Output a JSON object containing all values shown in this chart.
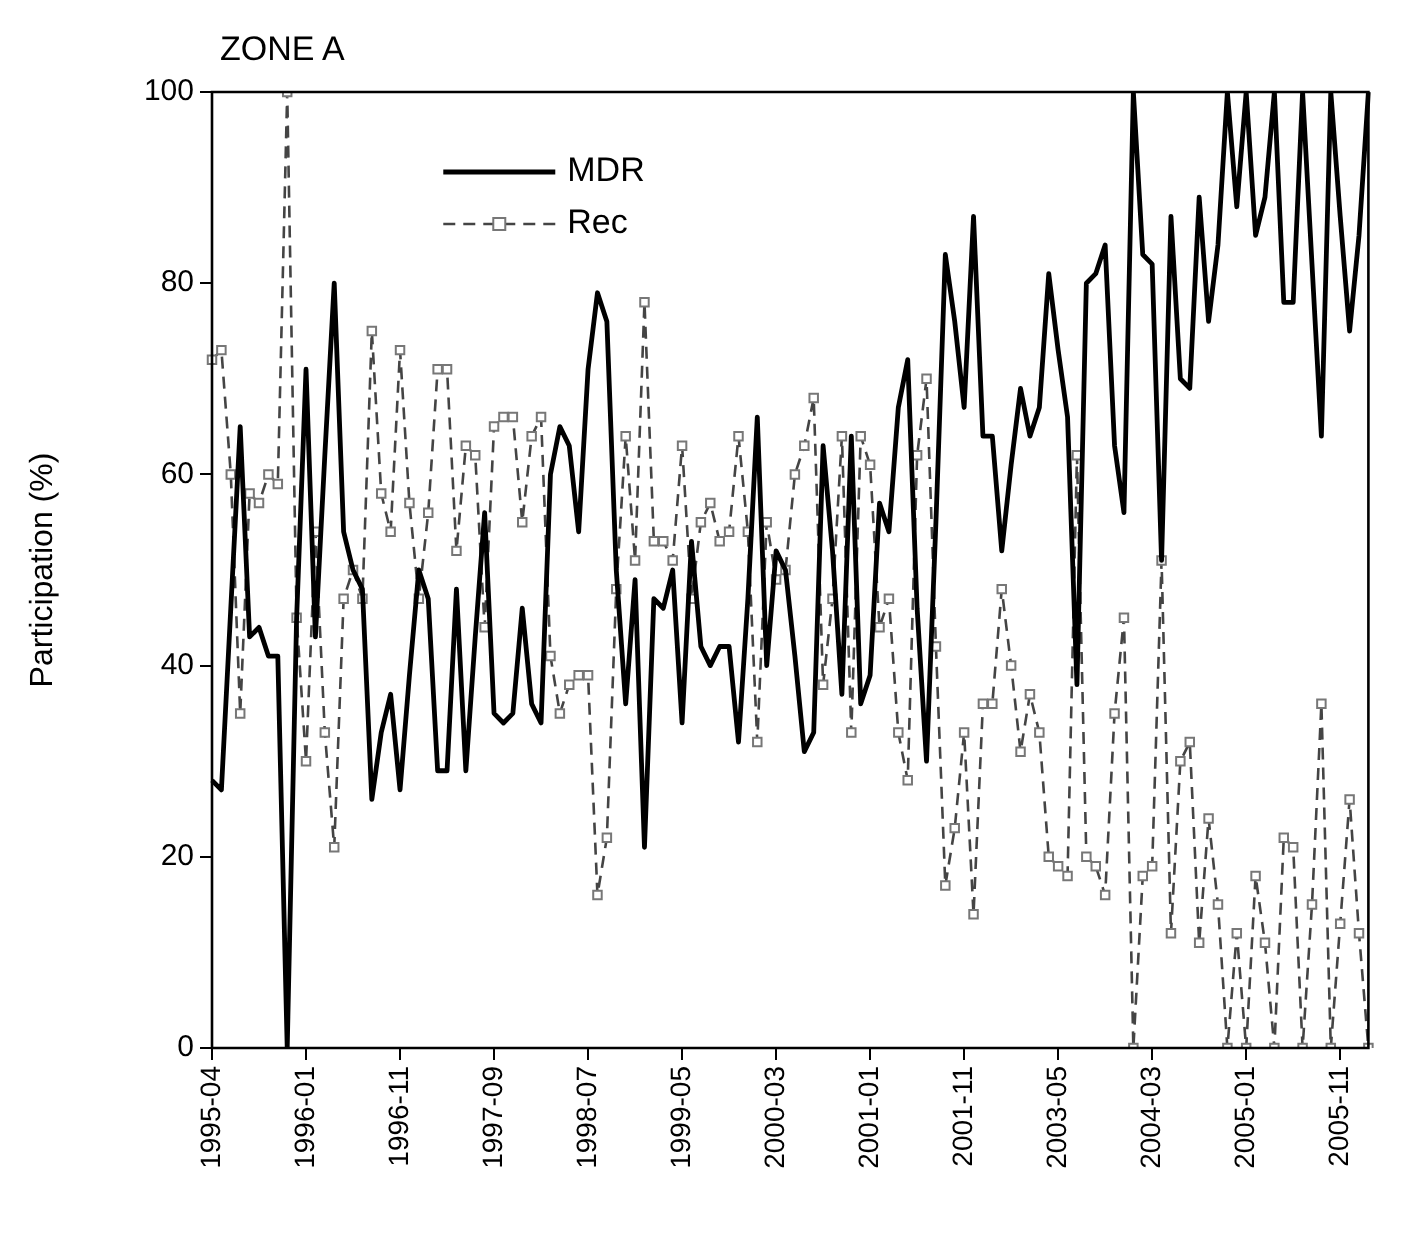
{
  "chart_data": {
    "type": "line",
    "title": "ZONE A",
    "ylabel": "Participation (%)",
    "categories": [
      "1995-04",
      null,
      null,
      null,
      null,
      null,
      null,
      null,
      null,
      null,
      "1996-01",
      null,
      null,
      null,
      null,
      null,
      null,
      null,
      null,
      null,
      "1996-11",
      null,
      null,
      null,
      null,
      null,
      null,
      null,
      null,
      null,
      "1997-09",
      null,
      null,
      null,
      null,
      null,
      null,
      null,
      null,
      null,
      "1998-07",
      null,
      null,
      null,
      null,
      null,
      null,
      null,
      null,
      null,
      "1999-05",
      null,
      null,
      null,
      null,
      null,
      null,
      null,
      null,
      null,
      "2000-03",
      null,
      null,
      null,
      null,
      null,
      null,
      null,
      null,
      null,
      "2001-01",
      null,
      null,
      null,
      null,
      null,
      null,
      null,
      null,
      null,
      "2001-11",
      null,
      null,
      null,
      null,
      null,
      null,
      null,
      null,
      null,
      "2003-05",
      null,
      null,
      null,
      null,
      null,
      null,
      null,
      null,
      null,
      "2004-03",
      null,
      null,
      null,
      null,
      null,
      null,
      null,
      null,
      null,
      "2005-01",
      null,
      null,
      null,
      null,
      null,
      null,
      null,
      null,
      null,
      "2005-11",
      null,
      null,
      null
    ],
    "series": [
      {
        "name": "MDR",
        "color": "#000000",
        "marker": "none",
        "line_style": "solid",
        "values": [
          28,
          27,
          46,
          65,
          43,
          44,
          41,
          41,
          0,
          45,
          71,
          43,
          62,
          80,
          54,
          50,
          48,
          26,
          33,
          37,
          27,
          39,
          50,
          47,
          29,
          29,
          48,
          29,
          43,
          56,
          35,
          34,
          35,
          46,
          36,
          34,
          60,
          65,
          63,
          54,
          71,
          79,
          76,
          50,
          36,
          49,
          21,
          47,
          46,
          50,
          34,
          53,
          42,
          40,
          42,
          42,
          32,
          47,
          66,
          40,
          52,
          50,
          41,
          31,
          33,
          63,
          52,
          37,
          64,
          36,
          39,
          57,
          54,
          67,
          72,
          46,
          30,
          55,
          83,
          76,
          67,
          87,
          64,
          64,
          52,
          61,
          69,
          64,
          67,
          81,
          73,
          66,
          38,
          80,
          81,
          84,
          63,
          56,
          100,
          83,
          82,
          51,
          87,
          70,
          69,
          89,
          76,
          84,
          100,
          88,
          100,
          85,
          89,
          100,
          78,
          78,
          100,
          82,
          64,
          100,
          87,
          75,
          85,
          100
        ]
      },
      {
        "name": "Rec",
        "color": "#444444",
        "marker": "square",
        "line_style": "dashed",
        "values": [
          72,
          73,
          60,
          35,
          58,
          57,
          60,
          59,
          100,
          45,
          30,
          54,
          33,
          21,
          47,
          50,
          47,
          75,
          58,
          54,
          73,
          57,
          47,
          56,
          71,
          71,
          52,
          63,
          62,
          44,
          65,
          66,
          66,
          55,
          64,
          66,
          41,
          35,
          38,
          39,
          39,
          16,
          22,
          48,
          64,
          51,
          78,
          53,
          53,
          51,
          63,
          47,
          55,
          57,
          53,
          54,
          64,
          54,
          32,
          55,
          49,
          50,
          60,
          63,
          68,
          38,
          47,
          64,
          33,
          64,
          61,
          44,
          47,
          33,
          28,
          62,
          70,
          42,
          17,
          23,
          33,
          14,
          36,
          36,
          48,
          40,
          31,
          37,
          33,
          20,
          19,
          18,
          62,
          20,
          19,
          16,
          35,
          45,
          0,
          18,
          19,
          51,
          12,
          30,
          32,
          11,
          24,
          15,
          0,
          12,
          0,
          18,
          11,
          0,
          22,
          21,
          0,
          15,
          36,
          0,
          13,
          26,
          12,
          0
        ]
      }
    ],
    "ylim": [
      0,
      100
    ],
    "yticks": [
      0,
      20,
      40,
      60,
      80,
      100
    ],
    "grid": false,
    "legend": "top left"
  }
}
